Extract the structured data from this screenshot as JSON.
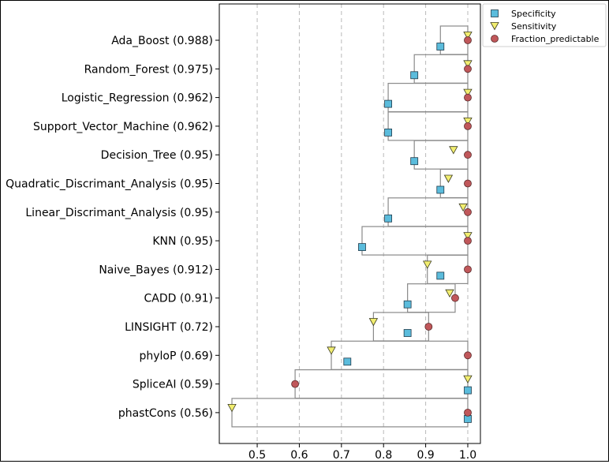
{
  "chart_data": {
    "type": "scatter",
    "title": "",
    "xlabel": "",
    "ylabel": "",
    "xlim": [
      0.41,
      1.03
    ],
    "xticks": [
      0.5,
      0.6,
      0.7,
      0.8,
      0.9,
      1.0
    ],
    "xtick_labels": [
      "0.5",
      "0.6",
      "0.7",
      "0.8",
      "0.9",
      "1.0"
    ],
    "grid": "vertical dashed at x ticks",
    "legend_placement": "top-right outside plot",
    "categories": [
      "Ada_Boost (0.988)",
      "Random_Forest (0.975)",
      "Logistic_Regression (0.962)",
      "Support_Vector_Machine (0.962)",
      "Decision_Tree (0.95)",
      "Quadratic_Discrimant_Analysis (0.95)",
      "Linear_Discrimant_Analysis (0.95)",
      "KNN (0.95)",
      "Naive_Bayes (0.912)",
      "CADD (0.91)",
      "LINSIGHT (0.72)",
      "phyloP (0.69)",
      "SpliceAI (0.59)",
      "phastCons (0.56)"
    ],
    "series": [
      {
        "name": "Specificity",
        "marker": "square",
        "color": "#5bbcdc",
        "values": [
          0.935,
          0.873,
          0.811,
          0.811,
          0.873,
          0.935,
          0.811,
          0.749,
          0.935,
          0.857,
          0.857,
          0.714,
          1.0,
          1.0
        ]
      },
      {
        "name": "Sensitivity",
        "marker": "triangle-down",
        "color": "#f2ee70",
        "values": [
          1.0,
          1.0,
          1.0,
          1.0,
          0.966,
          0.954,
          0.989,
          1.0,
          0.904,
          0.957,
          0.776,
          0.676,
          1.0,
          0.44
        ]
      },
      {
        "name": "Fraction_predictable",
        "marker": "circle",
        "color": "#c0575a",
        "values": [
          1.0,
          1.0,
          1.0,
          1.0,
          1.0,
          1.0,
          1.0,
          1.0,
          1.0,
          0.97,
          0.907,
          1.0,
          0.59,
          1.0
        ]
      }
    ],
    "range_boxes": {
      "description": "each row has a rectangle spanning the min to max of the three metrics",
      "colors": {
        "box_stroke": "#8a8a8a",
        "grid": "#b9b9b9"
      }
    }
  }
}
